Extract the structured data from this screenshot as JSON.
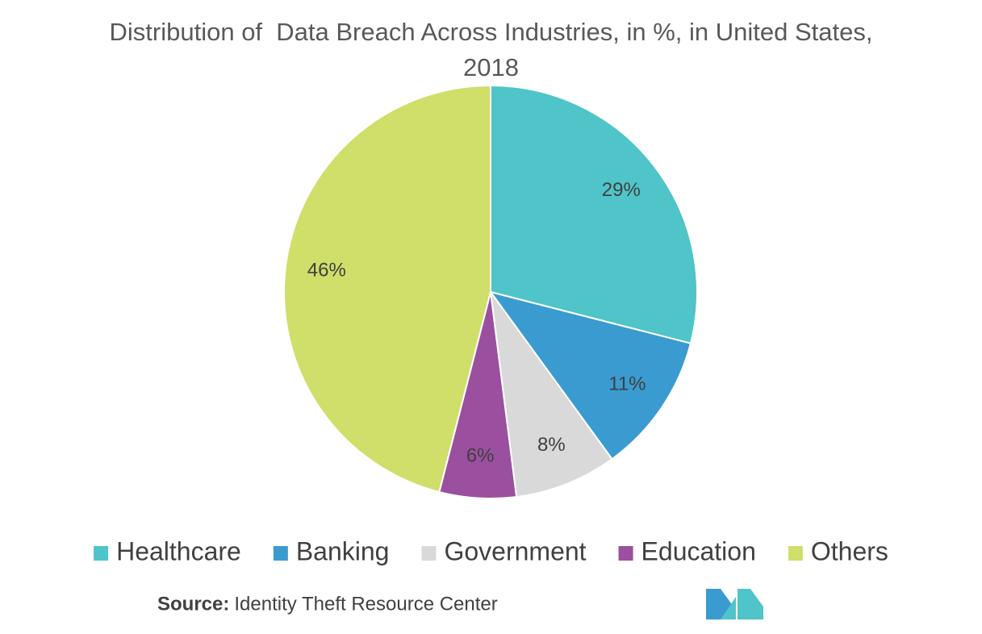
{
  "chart_data": {
    "type": "pie",
    "title": "Distribution of  Data Breach Across Industries, in %, in United States, 2018",
    "categories": [
      "Healthcare",
      "Banking",
      "Government",
      "Education",
      "Others"
    ],
    "values": [
      29,
      11,
      8,
      6,
      46
    ],
    "value_labels": [
      "29%",
      "11%",
      "8%",
      "6%",
      "46%"
    ],
    "colors": [
      "#4fc4c9",
      "#3a9bd0",
      "#d9d9d9",
      "#9b4f9f",
      "#d0de6a"
    ],
    "legend": "bottom",
    "source_label": "Source:",
    "source": "Identity Theft Resource Center"
  }
}
